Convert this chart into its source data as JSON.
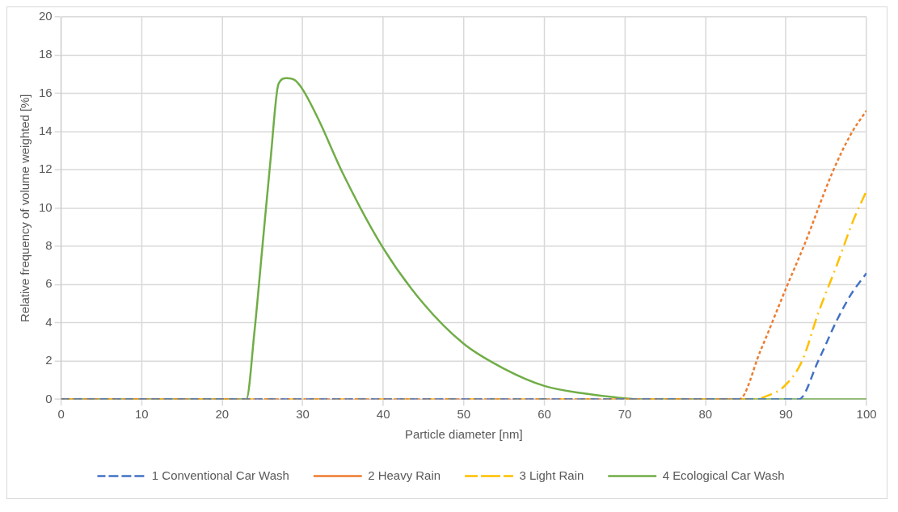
{
  "chart_data": {
    "type": "line",
    "xlabel": "Particle diameter [nm]",
    "ylabel": "Relative frequency of volume weighted [%]",
    "xlim": [
      0,
      100
    ],
    "xticks": [
      0,
      10,
      20,
      30,
      40,
      50,
      60,
      70,
      80,
      90,
      100
    ],
    "ylim": [
      0,
      20
    ],
    "yticks": [
      0,
      2,
      4,
      6,
      8,
      10,
      12,
      14,
      16,
      18,
      20
    ],
    "grid": true,
    "legend": "bottom",
    "marker": "none",
    "series": [
      {
        "name": "1 Conventional Car Wash",
        "color": "#4472c4",
        "line_style": "dashed",
        "x": [
          0,
          91.6,
          94,
          96.4,
          98.1,
          100
        ],
        "values": [
          0,
          0,
          2.0,
          4.2,
          5.5,
          6.6
        ]
      },
      {
        "name": "2 Heavy Rain",
        "color": "#ed7d31",
        "line_style": "dotted",
        "x": [
          0,
          84.2,
          86.8,
          90.2,
          92.3,
          95.8,
          98.1,
          100
        ],
        "values": [
          0,
          0,
          2.5,
          6.0,
          8.1,
          11.9,
          13.9,
          15.1
        ]
      },
      {
        "name": "3 Light Rain",
        "color": "#ffc000",
        "line_style": "dashdot",
        "x": [
          0,
          86,
          87.8,
          89.7,
          92,
          94,
          96.3,
          98.4,
          100
        ],
        "values": [
          0,
          0,
          0.2,
          0.65,
          2.0,
          4.5,
          7.0,
          9.4,
          10.9
        ]
      },
      {
        "name": "4 Ecological Car Wash",
        "color": "#70ad47",
        "line_style": "solid",
        "x": [
          0,
          23,
          24,
          25,
          26,
          27,
          28,
          29,
          30,
          32,
          35,
          40,
          45,
          50,
          55,
          60,
          65,
          70,
          72,
          100
        ],
        "values": [
          0,
          0,
          3.5,
          8,
          12.5,
          16.5,
          16.8,
          16.7,
          16.2,
          14.6,
          11.8,
          7.9,
          5.0,
          2.9,
          1.6,
          0.7,
          0.3,
          0.05,
          0,
          0
        ]
      }
    ]
  }
}
